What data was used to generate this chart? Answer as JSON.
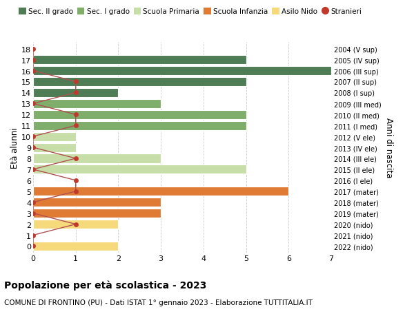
{
  "ages": [
    18,
    17,
    16,
    15,
    14,
    13,
    12,
    11,
    10,
    9,
    8,
    7,
    6,
    5,
    4,
    3,
    2,
    1,
    0
  ],
  "right_labels": [
    "2004 (V sup)",
    "2005 (IV sup)",
    "2006 (III sup)",
    "2007 (II sup)",
    "2008 (I sup)",
    "2009 (III med)",
    "2010 (II med)",
    "2011 (I med)",
    "2012 (V ele)",
    "2013 (IV ele)",
    "2014 (III ele)",
    "2015 (II ele)",
    "2016 (I ele)",
    "2017 (mater)",
    "2018 (mater)",
    "2019 (mater)",
    "2020 (nido)",
    "2021 (nido)",
    "2022 (nido)"
  ],
  "bars": [
    {
      "age": 18,
      "value": 0,
      "color": "#4d7c55"
    },
    {
      "age": 17,
      "value": 5,
      "color": "#4d7c55"
    },
    {
      "age": 16,
      "value": 7,
      "color": "#4d7c55"
    },
    {
      "age": 15,
      "value": 5,
      "color": "#4d7c55"
    },
    {
      "age": 14,
      "value": 2,
      "color": "#4d7c55"
    },
    {
      "age": 13,
      "value": 3,
      "color": "#7fad6a"
    },
    {
      "age": 12,
      "value": 5,
      "color": "#7fad6a"
    },
    {
      "age": 11,
      "value": 5,
      "color": "#7fad6a"
    },
    {
      "age": 10,
      "value": 1,
      "color": "#c8dea8"
    },
    {
      "age": 9,
      "value": 1,
      "color": "#c8dea8"
    },
    {
      "age": 8,
      "value": 3,
      "color": "#c8dea8"
    },
    {
      "age": 7,
      "value": 5,
      "color": "#c8dea8"
    },
    {
      "age": 6,
      "value": 0,
      "color": "#c8dea8"
    },
    {
      "age": 5,
      "value": 6,
      "color": "#e07b35"
    },
    {
      "age": 4,
      "value": 3,
      "color": "#e07b35"
    },
    {
      "age": 3,
      "value": 3,
      "color": "#e07b35"
    },
    {
      "age": 2,
      "value": 2,
      "color": "#f5d97a"
    },
    {
      "age": 1,
      "value": 0,
      "color": "#f5d97a"
    },
    {
      "age": 0,
      "value": 2,
      "color": "#f5d97a"
    }
  ],
  "stranieri": [
    {
      "age": 18,
      "value": 0
    },
    {
      "age": 17,
      "value": 0
    },
    {
      "age": 16,
      "value": 0
    },
    {
      "age": 15,
      "value": 1
    },
    {
      "age": 14,
      "value": 1
    },
    {
      "age": 13,
      "value": 0
    },
    {
      "age": 12,
      "value": 1
    },
    {
      "age": 11,
      "value": 1
    },
    {
      "age": 10,
      "value": 0
    },
    {
      "age": 9,
      "value": 0
    },
    {
      "age": 8,
      "value": 1
    },
    {
      "age": 7,
      "value": 0
    },
    {
      "age": 6,
      "value": 1
    },
    {
      "age": 5,
      "value": 1
    },
    {
      "age": 4,
      "value": 0
    },
    {
      "age": 3,
      "value": 0
    },
    {
      "age": 2,
      "value": 1
    },
    {
      "age": 1,
      "value": 0
    },
    {
      "age": 0,
      "value": 0
    }
  ],
  "xlim": [
    0,
    7
  ],
  "xticks": [
    0,
    1,
    2,
    3,
    4,
    5,
    6,
    7
  ],
  "ylabel_left": "Età alunni",
  "ylabel_right": "Anni di nascita",
  "legend_items": [
    {
      "label": "Sec. II grado",
      "color": "#4d7c55",
      "type": "patch"
    },
    {
      "label": "Sec. I grado",
      "color": "#7fad6a",
      "type": "patch"
    },
    {
      "label": "Scuola Primaria",
      "color": "#c8dea8",
      "type": "patch"
    },
    {
      "label": "Scuola Infanzia",
      "color": "#e07b35",
      "type": "patch"
    },
    {
      "label": "Asilo Nido",
      "color": "#f5d97a",
      "type": "patch"
    },
    {
      "label": "Stranieri",
      "color": "#c0392b",
      "type": "dot"
    }
  ],
  "title": "Popolazione per età scolastica - 2023",
  "subtitle": "COMUNE DI FRONTINO (PU) - Dati ISTAT 1° gennaio 2023 - Elaborazione TUTTITALIA.IT",
  "bg_color": "#ffffff",
  "grid_color": "#cccccc",
  "bar_height": 0.82,
  "stranieri_color": "#c0392b",
  "stranieri_line_color": "#b05050"
}
